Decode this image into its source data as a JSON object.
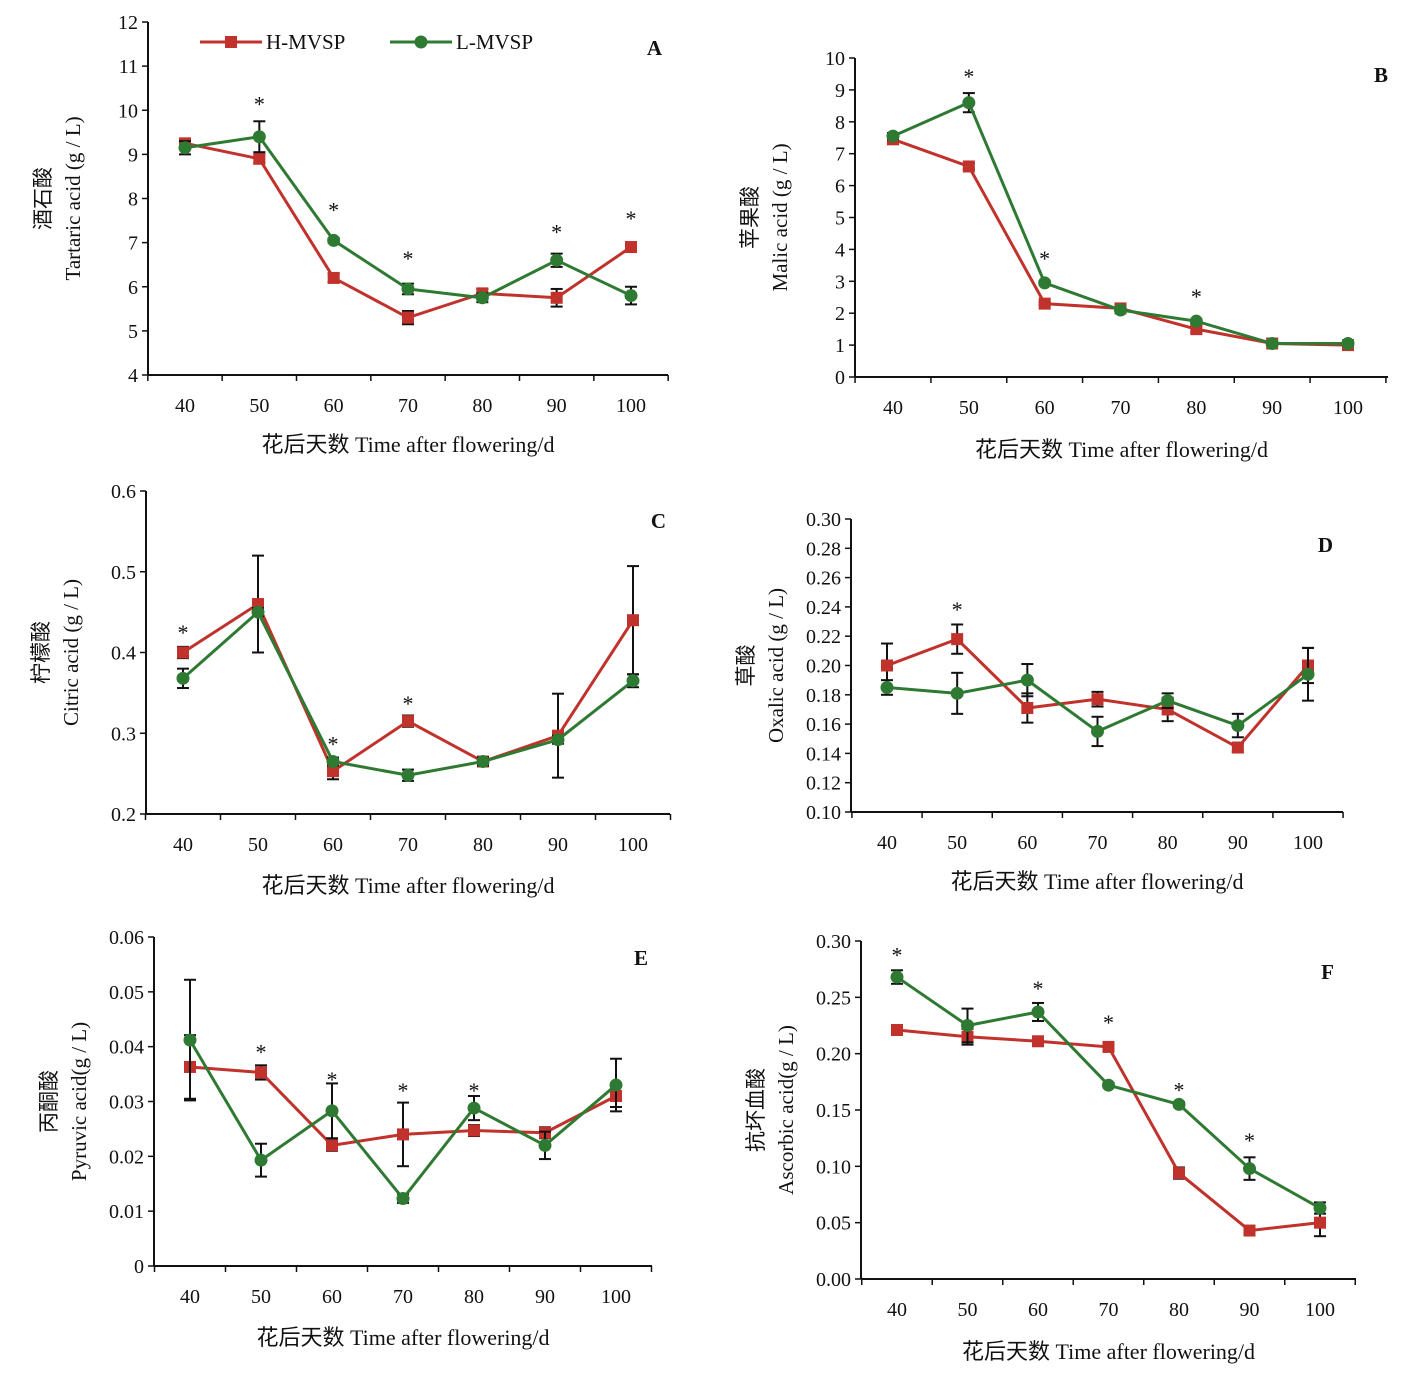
{
  "colors": {
    "H-MVSP": "#c0322b",
    "L-MVSP": "#2f7a32",
    "axis": "#111111"
  },
  "legend": {
    "placement": "top-left of panel A",
    "entries": [
      "H-MVSP",
      "L-MVSP"
    ]
  },
  "chart_data": [
    {
      "panel": "A",
      "type": "line",
      "xlabel": "花后天数 Time after flowering/d",
      "ylabel_cn": "酒石酸",
      "ylabel_en": "Tartaric acid (g / L)",
      "x": [
        40,
        50,
        60,
        70,
        80,
        90,
        100
      ],
      "ylim": [
        4,
        12
      ],
      "yticks": [
        "4",
        "5",
        "6",
        "7",
        "8",
        "9",
        "10",
        "11",
        "12"
      ],
      "series": [
        {
          "name": "H-MVSP",
          "values": [
            9.25,
            8.9,
            6.2,
            5.3,
            5.85,
            5.75,
            6.9
          ],
          "errors": [
            0.1,
            0.1,
            0.1,
            0.15,
            0.1,
            0.2,
            0.1
          ]
        },
        {
          "name": "L-MVSP",
          "values": [
            9.15,
            9.4,
            7.05,
            5.95,
            5.75,
            6.6,
            5.8
          ],
          "errors": [
            0.15,
            0.35,
            0.05,
            0.12,
            0.1,
            0.15,
            0.2
          ]
        }
      ],
      "significance": [
        {
          "x": 50,
          "label": "*",
          "y": 10.2
        },
        {
          "x": 60,
          "label": "*",
          "y": 7.8
        },
        {
          "x": 70,
          "label": "*",
          "y": 6.7
        },
        {
          "x": 90,
          "label": "*",
          "y": 7.3
        },
        {
          "x": 100,
          "label": "*",
          "y": 7.6
        }
      ]
    },
    {
      "panel": "B",
      "type": "line",
      "xlabel": "花后天数 Time after flowering/d",
      "ylabel_cn": "苹果酸",
      "ylabel_en": "Malic acid (g / L)",
      "x": [
        40,
        50,
        60,
        70,
        80,
        90,
        100
      ],
      "ylim": [
        0,
        10
      ],
      "yticks": [
        "0",
        "1",
        "2",
        "3",
        "4",
        "5",
        "6",
        "7",
        "8",
        "9",
        "10"
      ],
      "series": [
        {
          "name": "H-MVSP",
          "values": [
            7.45,
            6.6,
            2.3,
            2.15,
            1.5,
            1.05,
            1.0
          ],
          "errors": [
            0.05,
            0.1,
            0.05,
            0.05,
            0.1,
            0.05,
            0.05
          ]
        },
        {
          "name": "L-MVSP",
          "values": [
            7.55,
            8.6,
            2.95,
            2.1,
            1.75,
            1.05,
            1.05
          ],
          "errors": [
            0.1,
            0.3,
            0.05,
            0.05,
            0.05,
            0.05,
            0.05
          ]
        }
      ],
      "significance": [
        {
          "x": 50,
          "label": "*",
          "y": 9.5
        },
        {
          "x": 60,
          "label": "*",
          "y": 3.8
        },
        {
          "x": 80,
          "label": "*",
          "y": 2.6
        }
      ]
    },
    {
      "panel": "C",
      "type": "line",
      "xlabel": "花后天数 Time after flowering/d",
      "ylabel_cn": "柠檬酸",
      "ylabel_en": "Citric acid (g / L)",
      "x": [
        40,
        50,
        60,
        70,
        80,
        90,
        100
      ],
      "ylim": [
        0.2,
        0.6
      ],
      "yticks": [
        "0.2",
        "0.3",
        "0.4",
        "0.5",
        "0.6"
      ],
      "series": [
        {
          "name": "H-MVSP",
          "values": [
            0.4,
            0.46,
            0.253,
            0.315,
            0.265,
            0.297,
            0.44
          ],
          "errors": [
            0.007,
            0.06,
            0.01,
            0.007,
            0.005,
            0.052,
            0.067
          ]
        },
        {
          "name": "L-MVSP",
          "values": [
            0.368,
            0.45,
            0.265,
            0.248,
            0.265,
            0.292,
            0.365
          ],
          "errors": [
            0.012,
            0.005,
            0.005,
            0.007,
            0.005,
            0.005,
            0.008
          ]
        }
      ],
      "significance": [
        {
          "x": 40,
          "label": "*",
          "y": 0.428
        },
        {
          "x": 60,
          "label": "*",
          "y": 0.29
        },
        {
          "x": 70,
          "label": "*",
          "y": 0.34
        }
      ]
    },
    {
      "panel": "D",
      "type": "line",
      "xlabel": "花后天数 Time after flowering/d",
      "ylabel_cn": "草酸",
      "ylabel_en": "Oxalic acid (g / L)",
      "x": [
        40,
        50,
        60,
        70,
        80,
        90,
        100
      ],
      "ylim": [
        0.1,
        0.3
      ],
      "yticks": [
        "0.10",
        "0.12",
        "0.14",
        "0.16",
        "0.18",
        "0.20",
        "0.22",
        "0.24",
        "0.26",
        "0.28",
        "0.30"
      ],
      "series": [
        {
          "name": "H-MVSP",
          "values": [
            0.2,
            0.218,
            0.171,
            0.177,
            0.17,
            0.144,
            0.2
          ],
          "errors": [
            0.015,
            0.01,
            0.01,
            0.005,
            0.008,
            0.003,
            0.012
          ]
        },
        {
          "name": "L-MVSP",
          "values": [
            0.185,
            0.181,
            0.19,
            0.155,
            0.176,
            0.159,
            0.194
          ],
          "errors": [
            0.005,
            0.014,
            0.011,
            0.01,
            0.005,
            0.008,
            0.018
          ]
        }
      ],
      "significance": [
        {
          "x": 50,
          "label": "*",
          "y": 0.24
        }
      ]
    },
    {
      "panel": "E",
      "type": "line",
      "xlabel": "花后天数 Time after flowering/d",
      "ylabel_cn": "丙酮酸",
      "ylabel_en": "Pyruvic acid(g / L)",
      "x": [
        40,
        50,
        60,
        70,
        80,
        90,
        100
      ],
      "ylim": [
        0,
        0.06
      ],
      "yticks": [
        "0",
        "0.01",
        "0.02",
        "0.03",
        "0.04",
        "0.05",
        "0.06"
      ],
      "series": [
        {
          "name": "H-MVSP",
          "values": [
            0.0363,
            0.0353,
            0.022,
            0.024,
            0.0247,
            0.0243,
            0.031
          ],
          "errors": [
            0.0058,
            0.0013,
            0.001,
            0.0058,
            0.001,
            0.001,
            0.002
          ]
        },
        {
          "name": "L-MVSP",
          "values": [
            0.0412,
            0.0193,
            0.0283,
            0.0123,
            0.0288,
            0.022,
            0.033
          ],
          "errors": [
            0.011,
            0.003,
            0.005,
            0.0008,
            0.0022,
            0.0025,
            0.0048
          ]
        }
      ],
      "significance": [
        {
          "x": 50,
          "label": "*",
          "y": 0.0395
        },
        {
          "x": 60,
          "label": "*",
          "y": 0.0345
        },
        {
          "x": 70,
          "label": "*",
          "y": 0.0325
        },
        {
          "x": 80,
          "label": "*",
          "y": 0.0325
        }
      ]
    },
    {
      "panel": "F",
      "type": "line",
      "xlabel": "花后天数 Time after flowering/d",
      "ylabel_cn": "抗坏血酸",
      "ylabel_en": "Ascorbic acid(g / L)",
      "x": [
        40,
        50,
        60,
        70,
        80,
        90,
        100
      ],
      "ylim": [
        0,
        0.3
      ],
      "yticks": [
        "0.00",
        "0.05",
        "0.10",
        "0.15",
        "0.20",
        "0.25",
        "0.30"
      ],
      "series": [
        {
          "name": "H-MVSP",
          "values": [
            0.221,
            0.215,
            0.211,
            0.206,
            0.094,
            0.043,
            0.05
          ],
          "errors": [
            0.002,
            0.007,
            0.002,
            0.002,
            0.005,
            0.002,
            0.012
          ]
        },
        {
          "name": "L-MVSP",
          "values": [
            0.268,
            0.225,
            0.237,
            0.172,
            0.155,
            0.098,
            0.063
          ],
          "errors": [
            0.006,
            0.015,
            0.008,
            0.002,
            0.002,
            0.01,
            0.005
          ]
        }
      ],
      "significance": [
        {
          "x": 40,
          "label": "*",
          "y": 0.29
        },
        {
          "x": 60,
          "label": "*",
          "y": 0.26
        },
        {
          "x": 70,
          "label": "*",
          "y": 0.23
        },
        {
          "x": 80,
          "label": "*",
          "y": 0.17
        },
        {
          "x": 90,
          "label": "*",
          "y": 0.125
        }
      ]
    }
  ]
}
